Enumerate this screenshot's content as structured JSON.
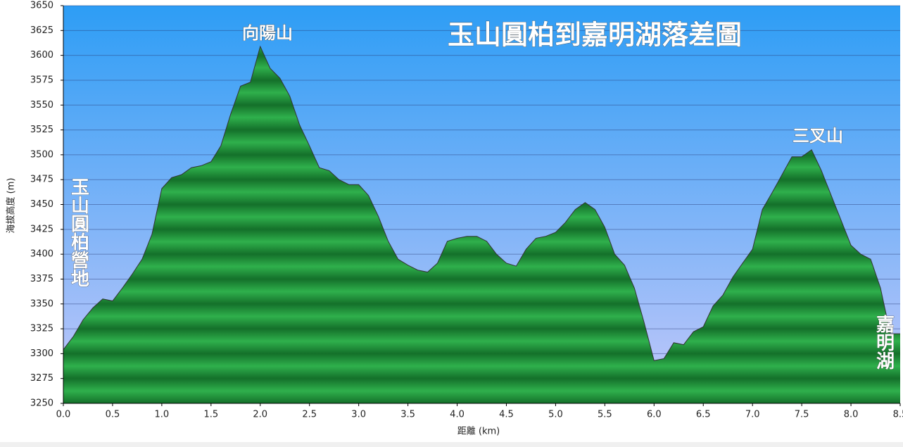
{
  "chart_data": {
    "type": "area",
    "title": "玉山圓柏到嘉明湖落差圖",
    "x_label": "距離 (km)",
    "y_label": "海拔高度 (m)",
    "annotations": [
      "向陽山",
      "三叉山",
      "玉山圓柏營地",
      "嘉明湖"
    ],
    "x": [
      0.0,
      0.1,
      0.2,
      0.3,
      0.4,
      0.5,
      0.6,
      0.7,
      0.8,
      0.9,
      1.0,
      1.1,
      1.2,
      1.3,
      1.4,
      1.5,
      1.6,
      1.7,
      1.8,
      1.9,
      2.0,
      2.1,
      2.2,
      2.3,
      2.4,
      2.5,
      2.6,
      2.7,
      2.8,
      2.9,
      3.0,
      3.1,
      3.2,
      3.3,
      3.4,
      3.5,
      3.6,
      3.7,
      3.8,
      3.9,
      4.0,
      4.1,
      4.2,
      4.3,
      4.4,
      4.5,
      4.6,
      4.7,
      4.8,
      4.9,
      5.0,
      5.1,
      5.2,
      5.3,
      5.4,
      5.5,
      5.6,
      5.7,
      5.8,
      5.9,
      6.0,
      6.1,
      6.2,
      6.3,
      6.4,
      6.5,
      6.6,
      6.7,
      6.8,
      6.9,
      7.0,
      7.1,
      7.2,
      7.3,
      7.4,
      7.5,
      7.6,
      7.7,
      7.8,
      7.9,
      8.0,
      8.1,
      8.2,
      8.3,
      8.4,
      8.5
    ],
    "values": [
      3304,
      3317,
      3334,
      3346,
      3355,
      3353,
      3366,
      3380,
      3395,
      3420,
      3466,
      3477,
      3480,
      3487,
      3489,
      3493,
      3509,
      3541,
      3569,
      3573,
      3609,
      3587,
      3577,
      3559,
      3530,
      3509,
      3487,
      3484,
      3475,
      3470,
      3470,
      3459,
      3438,
      3413,
      3395,
      3389,
      3384,
      3382,
      3391,
      3413,
      3416,
      3418,
      3418,
      3413,
      3400,
      3391,
      3388,
      3405,
      3416,
      3418,
      3422,
      3432,
      3445,
      3452,
      3445,
      3427,
      3400,
      3389,
      3366,
      3331,
      3293,
      3295,
      3311,
      3309,
      3322,
      3327,
      3348,
      3359,
      3377,
      3391,
      3405,
      3445,
      3462,
      3480,
      3498,
      3498,
      3505,
      3484,
      3459,
      3434,
      3409,
      3400,
      3395,
      3366,
      3320,
      3320
    ],
    "color": "#1e9a3a",
    "xlim": [
      0,
      8.5
    ],
    "ylim": [
      3250,
      3650
    ],
    "xticks": [
      {
        "value": 0,
        "label": "0.0"
      },
      0.5,
      {
        "value": 1,
        "label": "1.0"
      },
      1.5,
      {
        "value": 2,
        "label": "2.0"
      },
      2.5,
      {
        "value": 3,
        "label": "3.0"
      },
      3.5,
      {
        "value": 4,
        "label": "4.0"
      },
      4.5,
      {
        "value": 5,
        "label": "5.0"
      },
      5.5,
      {
        "value": 6,
        "label": "6.0"
      },
      6.5,
      {
        "value": 7,
        "label": "7.0"
      },
      7.5,
      {
        "value": 8,
        "label": "8.0"
      },
      8.5
    ],
    "yticks": [
      3250,
      3275,
      3300,
      3325,
      3350,
      3375,
      3400,
      3425,
      3450,
      3475,
      3500,
      3525,
      3550,
      3575,
      3600,
      3625,
      3650
    ],
    "grid": true
  }
}
